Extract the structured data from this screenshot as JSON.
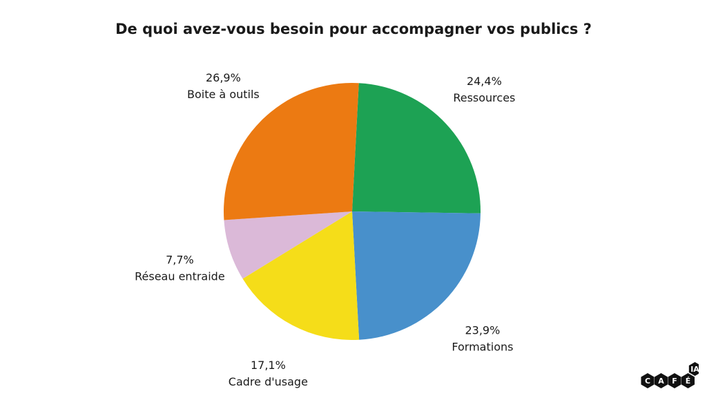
{
  "chart_data": {
    "type": "pie",
    "title": "De quoi avez-vous besoin pour accompagner vos publics ?",
    "slices": [
      {
        "label": "Ressources",
        "value": 24.4,
        "value_label": "24,4%",
        "color": "#1da254"
      },
      {
        "label": "Formations",
        "value": 23.9,
        "value_label": "23,9%",
        "color": "#4890cb"
      },
      {
        "label": "Cadre d'usage",
        "value": 17.1,
        "value_label": "17,1%",
        "color": "#f5dd19"
      },
      {
        "label": "Réseau entraide",
        "value": 7.7,
        "value_label": "7,7%",
        "color": "#dbb9d8"
      },
      {
        "label": "Boite à outils",
        "value": 26.9,
        "value_label": "26,9%",
        "color": "#ec7a12"
      }
    ],
    "start_angle_deg": 3,
    "direction": "clockwise"
  },
  "logo": {
    "letters": [
      "C",
      "A",
      "F",
      "É"
    ],
    "superscript": "IA"
  }
}
